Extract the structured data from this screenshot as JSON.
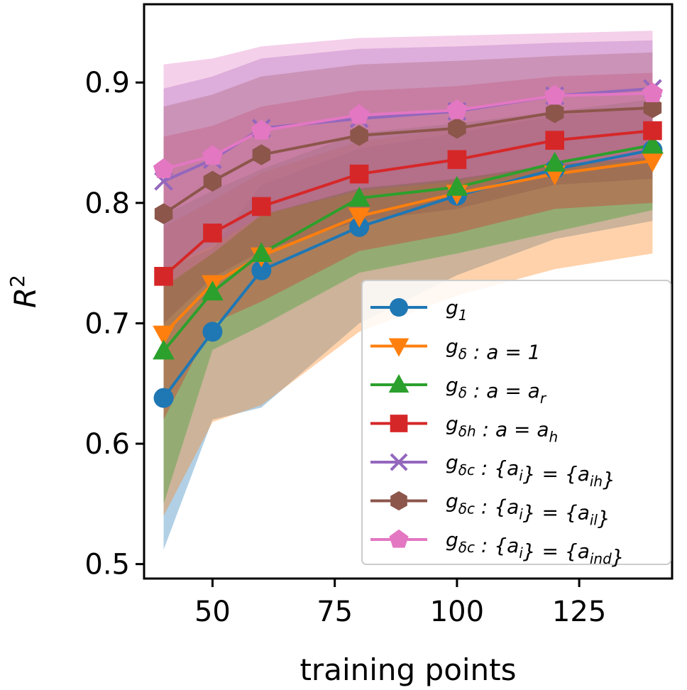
{
  "chart_data": {
    "type": "line",
    "xlabel": "training points",
    "ylabel": "R",
    "ylabel_superscript": "2",
    "xlim": [
      36,
      144
    ],
    "ylim": [
      0.488,
      0.965
    ],
    "x_ticks": [
      50,
      75,
      100,
      125
    ],
    "y_ticks": [
      0.5,
      0.6,
      0.7,
      0.8,
      0.9
    ],
    "x_tick_labels": [
      "50",
      "75",
      "100",
      "125"
    ],
    "y_tick_labels": [
      "0.5",
      "0.6",
      "0.7",
      "0.8",
      "0.9"
    ],
    "grid": false,
    "legend_position": "lower-right",
    "x": [
      40,
      50,
      60,
      80,
      100,
      120,
      140
    ],
    "series": [
      {
        "name": "g_1",
        "legend": {
          "base": "g",
          "sub": "1",
          "tail": ""
        },
        "color": "#1f77b4",
        "marker": "circle",
        "values": [
          0.638,
          0.693,
          0.744,
          0.78,
          0.806,
          0.828,
          0.844
        ],
        "lower": [
          0.512,
          0.62,
          0.63,
          0.7,
          0.74,
          0.77,
          0.785
        ],
        "upper": [
          0.745,
          0.762,
          0.815,
          0.845,
          0.858,
          0.872,
          0.88
        ]
      },
      {
        "name": "g_δ : a = 1",
        "legend": {
          "base": "g",
          "sub": "δ",
          "tail": " : a = 1"
        },
        "color": "#ff7f0e",
        "marker": "triangle-down",
        "values": [
          0.691,
          0.733,
          0.756,
          0.789,
          0.808,
          0.824,
          0.835
        ],
        "lower": [
          0.54,
          0.618,
          0.632,
          0.693,
          0.723,
          0.745,
          0.758
        ],
        "upper": [
          0.78,
          0.802,
          0.825,
          0.851,
          0.862,
          0.873,
          0.88
        ]
      },
      {
        "name": "g_δ : a = a_r",
        "legend": {
          "base": "g",
          "sub": "δ",
          "tail": " : a = a",
          "tail_sub": "r"
        },
        "color": "#2ca02c",
        "marker": "triangle-up",
        "values": [
          0.677,
          0.726,
          0.758,
          0.804,
          0.813,
          0.833,
          0.848
        ],
        "lower": [
          0.55,
          0.678,
          0.698,
          0.742,
          0.758,
          0.776,
          0.794
        ],
        "upper": [
          0.79,
          0.81,
          0.828,
          0.858,
          0.866,
          0.876,
          0.886
        ]
      },
      {
        "name": "g_δh : a = a_h",
        "legend": {
          "base": "g",
          "sub": "δh",
          "tail": " : a = a",
          "tail_sub": "h"
        },
        "color": "#d62728",
        "marker": "square",
        "values": [
          0.739,
          0.775,
          0.797,
          0.824,
          0.836,
          0.852,
          0.86
        ],
        "lower": [
          0.62,
          0.7,
          0.718,
          0.76,
          0.775,
          0.795,
          0.8
        ],
        "upper": [
          0.855,
          0.864,
          0.88,
          0.893,
          0.897,
          0.905,
          0.908
        ]
      },
      {
        "name": "g_δc : {a_i} = {a_ih}",
        "legend": {
          "base": "g",
          "sub": "δc",
          "tail": " : {a",
          "tail_sub": "i",
          "tail2": "} = {a",
          "tail2_sub": "ih",
          "tail3": "}"
        },
        "color": "#9467bd",
        "marker": "x",
        "values": [
          0.818,
          0.836,
          0.862,
          0.87,
          0.876,
          0.889,
          0.895
        ],
        "lower": [
          0.745,
          0.765,
          0.79,
          0.81,
          0.818,
          0.83,
          0.836
        ],
        "upper": [
          0.895,
          0.905,
          0.92,
          0.928,
          0.93,
          0.933,
          0.935
        ]
      },
      {
        "name": "g_δc : {a_i} = {a_il}",
        "legend": {
          "base": "g",
          "sub": "δc",
          "tail": " : {a",
          "tail_sub": "i",
          "tail2": "} = {a",
          "tail2_sub": "il",
          "tail3": "}"
        },
        "color": "#8c564b",
        "marker": "hexagon",
        "values": [
          0.791,
          0.818,
          0.84,
          0.856,
          0.862,
          0.875,
          0.879
        ],
        "lower": [
          0.7,
          0.738,
          0.76,
          0.785,
          0.795,
          0.815,
          0.82
        ],
        "upper": [
          0.88,
          0.89,
          0.905,
          0.915,
          0.918,
          0.922,
          0.925
        ]
      },
      {
        "name": "g_δc : {a_i} = {a_ind}",
        "legend": {
          "base": "g",
          "sub": "δc",
          "tail": " : {a",
          "tail_sub": "i",
          "tail2": "} = {a",
          "tail2_sub": "ind",
          "tail3": "}"
        },
        "color": "#e377c2",
        "marker": "pentagon",
        "values": [
          0.828,
          0.839,
          0.86,
          0.873,
          0.877,
          0.889,
          0.891
        ],
        "lower": [
          0.73,
          0.758,
          0.79,
          0.812,
          0.82,
          0.832,
          0.838
        ],
        "upper": [
          0.915,
          0.92,
          0.93,
          0.937,
          0.939,
          0.941,
          0.943
        ]
      }
    ]
  }
}
